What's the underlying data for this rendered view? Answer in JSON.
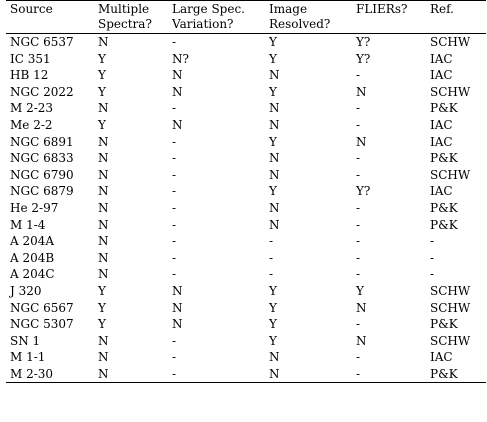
{
  "table": {
    "headers": [
      [
        "Source",
        ""
      ],
      [
        "Multiple",
        "Spectra?"
      ],
      [
        "Large Spec.",
        "Variation?"
      ],
      [
        "Image",
        "Resolved?"
      ],
      [
        "FLIERs?",
        ""
      ],
      [
        "Ref.",
        ""
      ]
    ],
    "rows": [
      [
        "NGC 6537",
        "N",
        "-",
        "Y",
        "Y?",
        "SCHW"
      ],
      [
        "IC 351",
        "Y",
        "N?",
        "Y",
        "Y?",
        "IAC"
      ],
      [
        "HB 12",
        "Y",
        "N",
        "N",
        "-",
        "IAC"
      ],
      [
        "NGC 2022",
        "Y",
        "N",
        "Y",
        "N",
        "SCHW"
      ],
      [
        "M 2-23",
        "N",
        "-",
        "N",
        "-",
        "P&K"
      ],
      [
        "Me 2-2",
        "Y",
        "N",
        "N",
        "-",
        "IAC"
      ],
      [
        "NGC 6891",
        "N",
        "-",
        "Y",
        "N",
        "IAC"
      ],
      [
        "NGC 6833",
        "N",
        "-",
        "N",
        "-",
        "P&K"
      ],
      [
        "NGC 6790",
        "N",
        "-",
        "N",
        "-",
        "SCHW"
      ],
      [
        "NGC 6879",
        "N",
        "-",
        "Y",
        "Y?",
        "IAC"
      ],
      [
        "He 2-97",
        "N",
        "-",
        "N",
        "-",
        "P&K"
      ],
      [
        "M 1-4",
        "N",
        "-",
        "N",
        "-",
        "P&K"
      ],
      [
        "A 204A",
        "N",
        "-",
        "-",
        "-",
        "-"
      ],
      [
        "A 204B",
        "N",
        "-",
        "-",
        "-",
        "-"
      ],
      [
        "A 204C",
        "N",
        "-",
        "-",
        "-",
        "-"
      ],
      [
        "J 320",
        "Y",
        "N",
        "Y",
        "Y",
        "SCHW"
      ],
      [
        "NGC 6567",
        "Y",
        "N",
        "Y",
        "N",
        "SCHW"
      ],
      [
        "NGC 5307",
        "Y",
        "N",
        "Y",
        "-",
        "P&K"
      ],
      [
        "SN 1",
        "N",
        "-",
        "Y",
        "N",
        "SCHW"
      ],
      [
        "M 1-1",
        "N",
        "-",
        "N",
        "-",
        "IAC"
      ],
      [
        "M 2-30",
        "N",
        "-",
        "N",
        "-",
        "P&K"
      ]
    ]
  }
}
